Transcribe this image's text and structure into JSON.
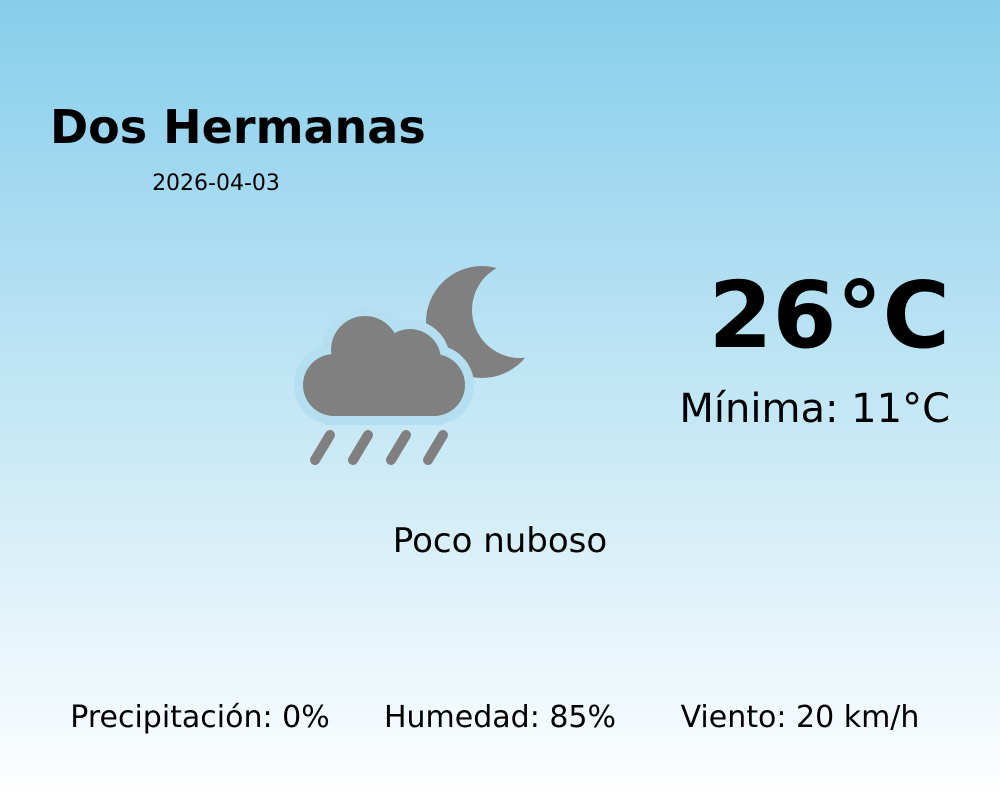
{
  "location": {
    "city": "Dos Hermanas",
    "date": "2026-04-03"
  },
  "current": {
    "temperature": "26°C",
    "minimum": "Mínima: 11°C",
    "condition": "Poco nuboso",
    "icon": "cloud-rain-moon-icon",
    "icon_color": "#808080"
  },
  "stats": [
    {
      "label": "Precipitación: 0%"
    },
    {
      "label": "Humedad: 85%"
    },
    {
      "label": "Viento: 20 km/h"
    }
  ],
  "colors": {
    "background_top": "#87ceeb",
    "background_bottom": "#ffffff"
  }
}
